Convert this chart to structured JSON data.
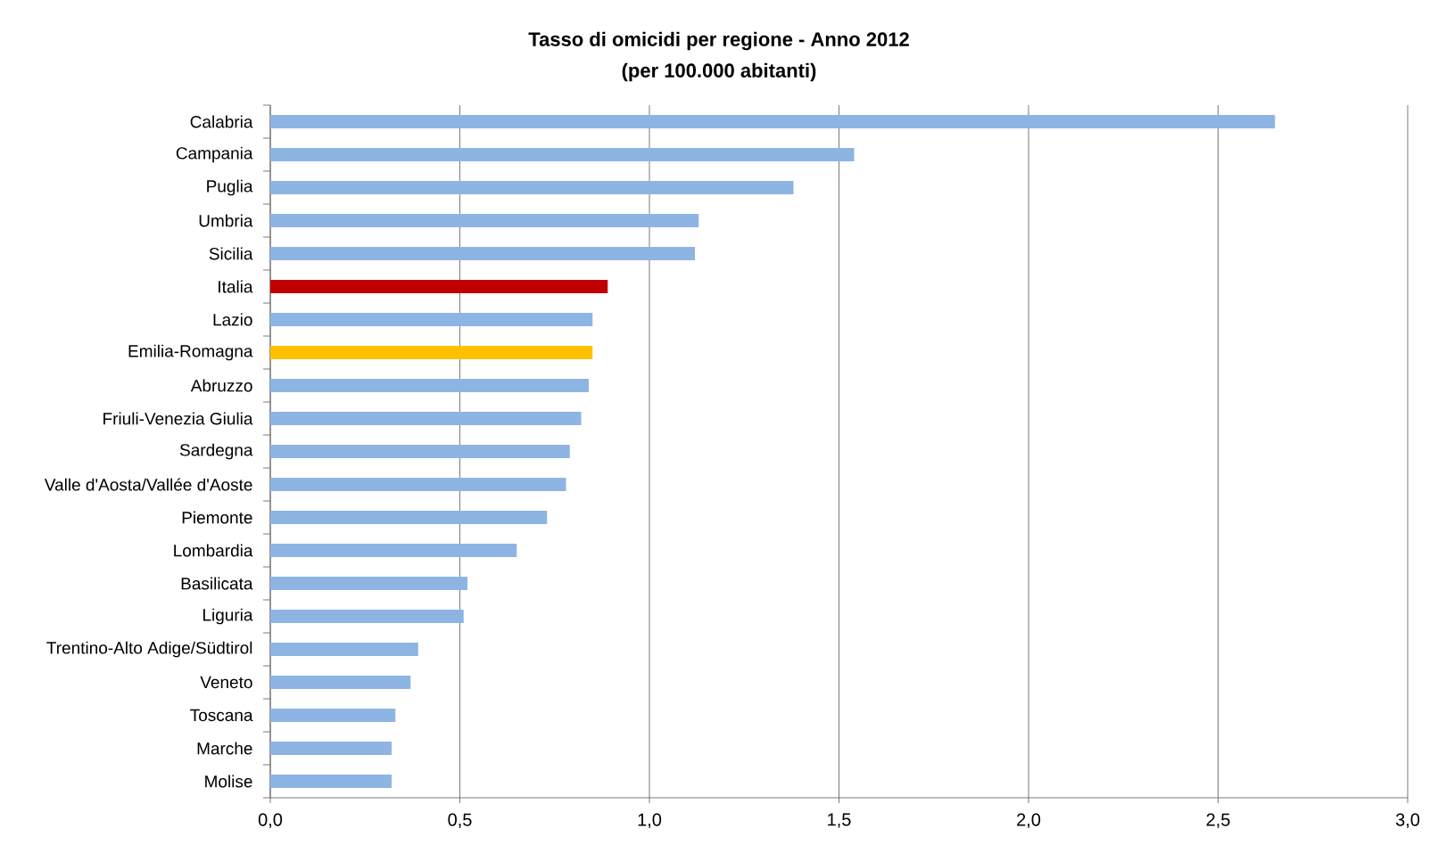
{
  "chart_data": {
    "type": "bar",
    "orientation": "horizontal",
    "title": "Tasso di omicidi per regione - Anno 2012",
    "subtitle": "(per 100.000 abitanti)",
    "categories": [
      "Calabria",
      "Campania",
      "Puglia",
      "Umbria",
      "Sicilia",
      "Italia",
      "Lazio",
      "Emilia-Romagna",
      "Abruzzo",
      "Friuli-Venezia Giulia",
      "Sardegna",
      "Valle d'Aosta/Vallée d'Aoste",
      "Piemonte",
      "Lombardia",
      "Basilicata",
      "Liguria",
      "Trentino-Alto Adige/Südtirol",
      "Veneto",
      "Toscana",
      "Marche",
      "Molise"
    ],
    "values": [
      2.65,
      1.54,
      1.38,
      1.13,
      1.12,
      0.89,
      0.85,
      0.85,
      0.84,
      0.82,
      0.79,
      0.78,
      0.73,
      0.65,
      0.52,
      0.51,
      0.39,
      0.37,
      0.33,
      0.32,
      0.32
    ],
    "colors": [
      "#8eb4e3",
      "#8eb4e3",
      "#8eb4e3",
      "#8eb4e3",
      "#8eb4e3",
      "#c00000",
      "#8eb4e3",
      "#ffc000",
      "#8eb4e3",
      "#8eb4e3",
      "#8eb4e3",
      "#8eb4e3",
      "#8eb4e3",
      "#8eb4e3",
      "#8eb4e3",
      "#8eb4e3",
      "#8eb4e3",
      "#8eb4e3",
      "#8eb4e3",
      "#8eb4e3",
      "#8eb4e3"
    ],
    "xlim": [
      0,
      3
    ],
    "xticks": [
      {
        "value": 0,
        "label": "0,0"
      },
      {
        "value": 0.5,
        "label": "0,5"
      },
      {
        "value": 1,
        "label": "1,0"
      },
      {
        "value": 1.5,
        "label": "1,5"
      },
      {
        "value": 2,
        "label": "2,0"
      },
      {
        "value": 2.5,
        "label": "2,5"
      },
      {
        "value": 3,
        "label": "3,0"
      }
    ],
    "grid": "x"
  }
}
